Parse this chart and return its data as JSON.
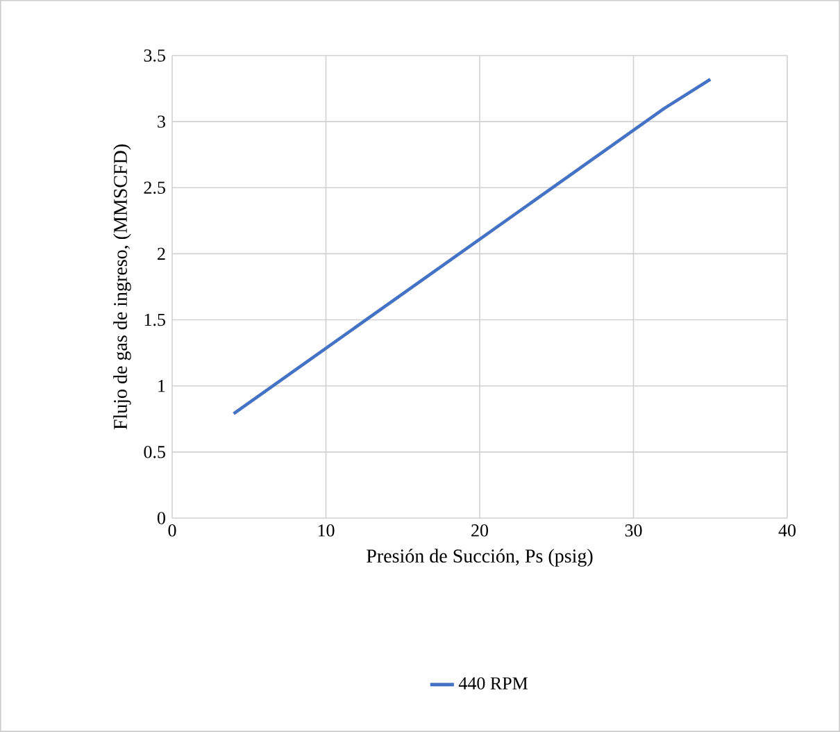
{
  "chart_data": {
    "type": "line",
    "xlabel": "Presión de Succión, Ps (psig)",
    "ylabel": "Flujo de gas de ingreso, (MMSCFD)",
    "x": [
      4,
      32,
      35
    ],
    "series": [
      {
        "name": "440 RPM",
        "color": "#4472c4",
        "values": [
          0.79,
          3.1,
          3.32
        ]
      }
    ],
    "xlim": [
      0,
      40
    ],
    "xticks": [
      0,
      10,
      20,
      30,
      40
    ],
    "ylim": [
      0,
      3.5
    ],
    "yticks": [
      0,
      0.5,
      1,
      1.5,
      2,
      2.5,
      3,
      3.5
    ],
    "grid": true,
    "legend": "bottom",
    "marker": "none",
    "line_style": "solid"
  }
}
